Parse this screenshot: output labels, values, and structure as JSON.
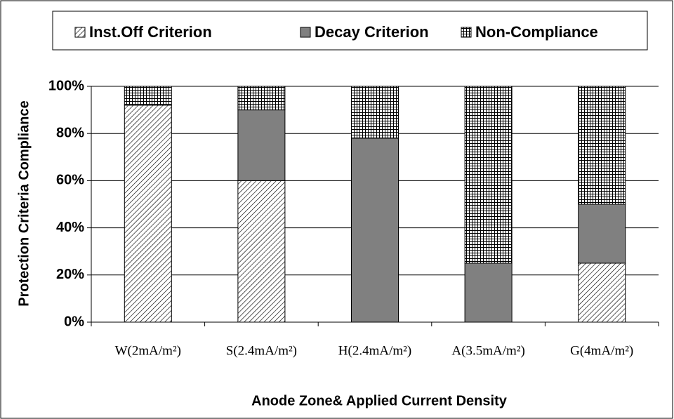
{
  "chart_data": {
    "type": "stacked_bar",
    "x_label": "Anode Zone& Applied Current Density",
    "y_label": "Protection Criteria Compliance",
    "categories": [
      "W(2mA/m²)",
      "S(2.4mA/m²)",
      "H(2.4mA/m²)",
      "A(3.5mA/m²)",
      "G(4mA/m²)"
    ],
    "series": [
      {
        "name": "Inst.Off Criterion",
        "color": "#000000",
        "pattern": "diagonal",
        "values": [
          92,
          60,
          0,
          0,
          25
        ]
      },
      {
        "name": "Decay Criterion",
        "color": "#808080",
        "pattern": "solid",
        "values": [
          0,
          30,
          78,
          25,
          25
        ]
      },
      {
        "name": "Non-Compliance",
        "color": "#000000",
        "pattern": "grid",
        "values": [
          8,
          10,
          22,
          75,
          50
        ]
      }
    ],
    "ylim": [
      0,
      100
    ],
    "yticks": [
      {
        "value": 0,
        "label": "0%"
      },
      {
        "value": 20,
        "label": "20%"
      },
      {
        "value": 40,
        "label": "40%"
      },
      {
        "value": 60,
        "label": "60%"
      },
      {
        "value": 80,
        "label": "80%"
      },
      {
        "value": 100,
        "label": "100%"
      }
    ],
    "grid": true,
    "legend": "top"
  }
}
